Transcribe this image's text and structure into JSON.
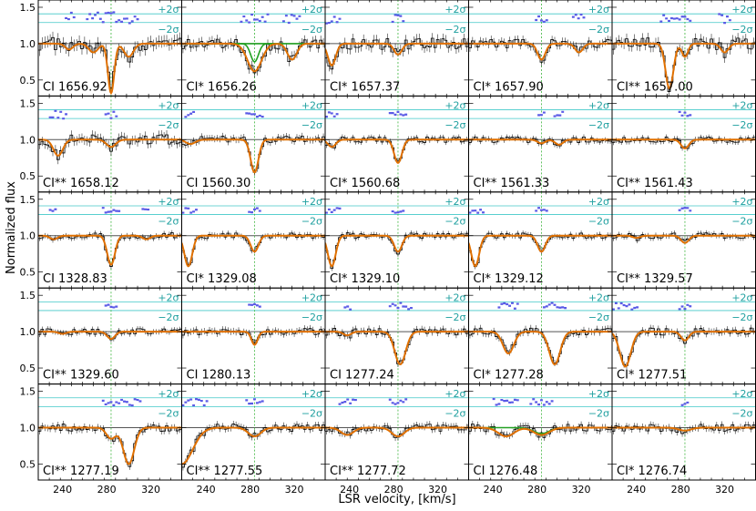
{
  "figure": {
    "xlabel": "LSR velocity, [km/s]",
    "ylabel": "Normalized flux",
    "sigma_plus_label": "+2σ",
    "sigma_minus_label": "−2σ"
  },
  "colors": {
    "data": "#000000",
    "model": "#e07000",
    "component": "#22a022",
    "residual": "#5a5ae6",
    "sigma_lines": "#40c8c8",
    "sigma_text": "#20a0a0",
    "marker": "#3cb43c",
    "continuum": "#000000"
  },
  "chart_data": {
    "type": "line",
    "layout": "5x5 grid of absorption-line panels",
    "x_range": [
      218,
      348
    ],
    "y_range": [
      0.28,
      1.6
    ],
    "x_ticks": [
      240,
      280,
      320
    ],
    "y_ticks": [
      0.5,
      1.0,
      1.5
    ],
    "marker_velocity": 284,
    "panels": [
      {
        "label": "CI 1656.92",
        "lines": [
          {
            "v": 284,
            "depth": 0.68,
            "w": 4
          },
          {
            "v": 268,
            "depth": 0.12,
            "w": 6
          },
          {
            "v": 300,
            "depth": 0.18,
            "w": 6
          },
          {
            "v": 246,
            "depth": 0.08,
            "w": 5
          }
        ],
        "noise": 0.09,
        "resid": true
      },
      {
        "label": "CI* 1656.26",
        "lines": [
          {
            "v": 284,
            "depth": 0.38,
            "w": 9
          },
          {
            "v": 318,
            "depth": 0.22,
            "w": 6
          }
        ],
        "components": [
          {
            "v": 284,
            "depth": 0.25,
            "w": 5
          },
          {
            "v": 318,
            "depth": 0.22,
            "w": 6
          }
        ],
        "noise": 0.07,
        "resid": true
      },
      {
        "label": "CI* 1657.37",
        "lines": [
          {
            "v": 224,
            "depth": 0.3,
            "w": 5
          },
          {
            "v": 284,
            "depth": 0.15,
            "w": 5
          }
        ],
        "noise": 0.08,
        "resid": true
      },
      {
        "label": "CI* 1657.90",
        "lines": [
          {
            "v": 284,
            "depth": 0.22,
            "w": 5
          },
          {
            "v": 318,
            "depth": 0.12,
            "w": 5
          }
        ],
        "noise": 0.06,
        "resid": true
      },
      {
        "label": "CI** 1657.00",
        "lines": [
          {
            "v": 270,
            "depth": 0.62,
            "w": 5
          },
          {
            "v": 284,
            "depth": 0.18,
            "w": 4
          },
          {
            "v": 320,
            "depth": 0.12,
            "w": 5
          }
        ],
        "noise": 0.08,
        "resid": true
      },
      {
        "label": "CI** 1658.12",
        "lines": [
          {
            "v": 236,
            "depth": 0.22,
            "w": 6
          },
          {
            "v": 284,
            "depth": 0.1,
            "w": 6
          }
        ],
        "noise": 0.07,
        "resid": true
      },
      {
        "label": "CI 1560.30",
        "lines": [
          {
            "v": 284,
            "depth": 0.45,
            "w": 5
          },
          {
            "v": 226,
            "depth": 0.06,
            "w": 6
          }
        ],
        "noise": 0.05,
        "resid": true
      },
      {
        "label": "CI* 1560.68",
        "lines": [
          {
            "v": 284,
            "depth": 0.32,
            "w": 5
          },
          {
            "v": 224,
            "depth": 0.1,
            "w": 5
          }
        ],
        "noise": 0.04,
        "resid": true
      },
      {
        "label": "CI** 1561.33",
        "lines": [
          {
            "v": 284,
            "depth": 0.05,
            "w": 5
          },
          {
            "v": 300,
            "depth": 0.07,
            "w": 5
          }
        ],
        "noise": 0.04,
        "resid": true
      },
      {
        "label": "CI** 1561.43",
        "lines": [
          {
            "v": 284,
            "depth": 0.12,
            "w": 5
          }
        ],
        "noise": 0.04,
        "resid": true
      },
      {
        "label": "CI 1328.83",
        "lines": [
          {
            "v": 284,
            "depth": 0.4,
            "w": 5
          },
          {
            "v": 232,
            "depth": 0.05,
            "w": 5
          },
          {
            "v": 316,
            "depth": 0.05,
            "w": 5
          }
        ],
        "noise": 0.04,
        "resid": true
      },
      {
        "label": "CI* 1329.08",
        "lines": [
          {
            "v": 224,
            "depth": 0.42,
            "w": 5
          },
          {
            "v": 284,
            "depth": 0.22,
            "w": 5
          }
        ],
        "noise": 0.04,
        "resid": true
      },
      {
        "label": "CI* 1329.10",
        "lines": [
          {
            "v": 224,
            "depth": 0.42,
            "w": 5
          },
          {
            "v": 284,
            "depth": 0.22,
            "w": 5
          }
        ],
        "noise": 0.04,
        "resid": true
      },
      {
        "label": "CI* 1329.12",
        "lines": [
          {
            "v": 224,
            "depth": 0.42,
            "w": 5
          },
          {
            "v": 284,
            "depth": 0.22,
            "w": 5
          }
        ],
        "noise": 0.04,
        "resid": true
      },
      {
        "label": "CI** 1329.57",
        "lines": [
          {
            "v": 284,
            "depth": 0.1,
            "w": 5
          },
          {
            "v": 240,
            "depth": 0.03,
            "w": 5
          }
        ],
        "noise": 0.04,
        "resid": true
      },
      {
        "label": "CI** 1329.60",
        "lines": [
          {
            "v": 284,
            "depth": 0.1,
            "w": 5
          },
          {
            "v": 240,
            "depth": 0.03,
            "w": 5
          }
        ],
        "noise": 0.04,
        "resid": true
      },
      {
        "label": "CI 1280.13",
        "lines": [
          {
            "v": 284,
            "depth": 0.18,
            "w": 4
          }
        ],
        "noise": 0.05,
        "resid": true
      },
      {
        "label": "CI 1277.24",
        "lines": [
          {
            "v": 286,
            "depth": 0.45,
            "w": 7
          },
          {
            "v": 238,
            "depth": 0.05,
            "w": 5
          }
        ],
        "noise": 0.05,
        "resid": true
      },
      {
        "label": "CI* 1277.28",
        "lines": [
          {
            "v": 254,
            "depth": 0.3,
            "w": 7
          },
          {
            "v": 296,
            "depth": 0.45,
            "w": 7
          }
        ],
        "noise": 0.05,
        "resid": true
      },
      {
        "label": "CI* 1277.51",
        "lines": [
          {
            "v": 230,
            "depth": 0.48,
            "w": 7
          },
          {
            "v": 284,
            "depth": 0.12,
            "w": 5
          }
        ],
        "noise": 0.05,
        "resid": true
      },
      {
        "label": "CI** 1277.19",
        "lines": [
          {
            "v": 284,
            "depth": 0.15,
            "w": 6
          },
          {
            "v": 300,
            "depth": 0.5,
            "w": 7
          }
        ],
        "noise": 0.05,
        "resid": true
      },
      {
        "label": "CI** 1277.55",
        "lines": [
          {
            "v": 218,
            "depth": 0.5,
            "w": 14
          },
          {
            "v": 284,
            "depth": 0.12,
            "w": 8
          }
        ],
        "noise": 0.05,
        "resid": true
      },
      {
        "label": "CI** 1277.72",
        "lines": [
          {
            "v": 238,
            "depth": 0.1,
            "w": 8
          },
          {
            "v": 284,
            "depth": 0.12,
            "w": 8
          }
        ],
        "noise": 0.05,
        "resid": true
      },
      {
        "label": "CI 1276.48",
        "lines": [
          {
            "v": 252,
            "depth": 0.12,
            "w": 10
          },
          {
            "v": 284,
            "depth": 0.1,
            "w": 10
          }
        ],
        "components": [
          {
            "v": 284,
            "depth": 0.08,
            "w": 10
          }
        ],
        "noise": 0.05,
        "resid": true
      },
      {
        "label": "CI* 1276.74",
        "lines": [
          {
            "v": 284,
            "depth": 0.04,
            "w": 8
          }
        ],
        "noise": 0.05,
        "resid": true
      }
    ]
  }
}
